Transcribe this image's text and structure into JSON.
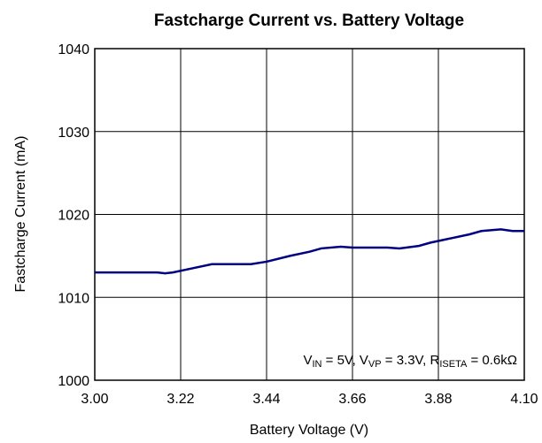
{
  "chart_data": {
    "type": "line",
    "title": "Fastcharge Current vs. Battery Voltage",
    "xlabel": "Battery Voltage (V)",
    "ylabel": "Fastcharge Current (mA)",
    "annotation": [
      "V",
      "IN",
      " = 5V, V",
      "VP",
      " = 3.3V, R",
      "ISETA",
      " = 0.6kΩ"
    ],
    "x": [
      3.0,
      3.05,
      3.1,
      3.16,
      3.18,
      3.2,
      3.25,
      3.3,
      3.35,
      3.4,
      3.44,
      3.5,
      3.55,
      3.58,
      3.63,
      3.66,
      3.7,
      3.75,
      3.78,
      3.83,
      3.86,
      3.9,
      3.96,
      3.99,
      4.04,
      4.07,
      4.1
    ],
    "series": [
      {
        "color": "#000080",
        "values": [
          1013,
          1013,
          1013,
          1013,
          1012.9,
          1013,
          1013.5,
          1014,
          1014,
          1014,
          1014.3,
          1015,
          1015.5,
          1015.9,
          1016.1,
          1016,
          1016,
          1016,
          1015.9,
          1016.2,
          1016.6,
          1017,
          1017.6,
          1018,
          1018.2,
          1018,
          1018
        ]
      }
    ],
    "xlim": [
      3.0,
      4.1
    ],
    "xticks": [
      {
        "value": 3,
        "label": "3.00"
      },
      3.22,
      3.44,
      3.66,
      3.88,
      {
        "value": 4.1,
        "label": "4.10"
      }
    ],
    "ylim": [
      1000,
      1040
    ],
    "yticks": [
      1000,
      1010,
      1020,
      1030,
      1040
    ],
    "grid": true
  }
}
